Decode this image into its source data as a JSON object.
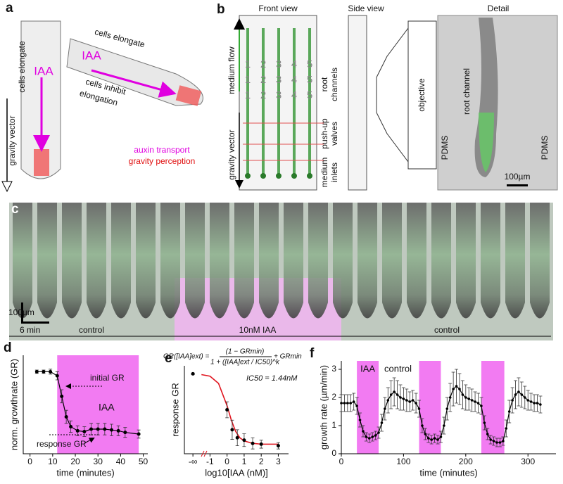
{
  "panel_a": {
    "label": "a",
    "cells_elongate_1": "cells elongate",
    "cells_elongate_2": "cells elongate",
    "iaa_1": "IAA",
    "iaa_2": "IAA",
    "cells_inhibit": "cells inhibit",
    "elongation": "elongation",
    "auxin_transport": "auxin transport",
    "gravity_perception": "gravity perception",
    "gravity_vector": "gravity vector"
  },
  "panel_b": {
    "label": "b",
    "front_view": "Front view",
    "side_view": "Side view",
    "detail": "Detail",
    "medium_flow": "medium flow",
    "gravity_vector": "gravity vector",
    "root": "root",
    "channels": "channels",
    "push_up": "push-up",
    "valves": "valves",
    "medium": "medium",
    "inlets": "inlets",
    "objective": "objective",
    "pdms_left": "PDMS",
    "pdms_right": "PDMS",
    "root_channel": "root channel",
    "scale": "100µm",
    "channel_numbers": [
      "1",
      "2",
      "3",
      "4",
      "5"
    ]
  },
  "panel_c": {
    "label": "c",
    "scale": "100µm",
    "time_scale": "6 min",
    "segments": [
      "control",
      "10nM IAA",
      "control"
    ]
  },
  "chart_data": [
    {
      "type": "line",
      "label": "d",
      "xlabel": "time (minutes)",
      "ylabel": "norm. growthrate (GR)",
      "color": "#000",
      "highlight_color": "#f27bf2",
      "highlights": [
        [
          12,
          48
        ]
      ],
      "x": [
        3,
        6,
        9,
        12,
        14,
        16,
        18,
        21,
        24,
        27,
        30,
        33,
        36,
        39,
        42,
        48
      ],
      "values": [
        1.0,
        1.0,
        1.0,
        0.95,
        0.7,
        0.45,
        0.33,
        0.28,
        0.27,
        0.3,
        0.3,
        0.3,
        0.29,
        0.28,
        0.26,
        0.24
      ],
      "errors": [
        0.02,
        0.02,
        0.03,
        0.05,
        0.08,
        0.08,
        0.07,
        0.06,
        0.06,
        0.07,
        0.07,
        0.07,
        0.07,
        0.06,
        0.06,
        0.05
      ],
      "xlim": [
        -3,
        52
      ],
      "ylim": [
        0,
        1.2
      ],
      "xticks": [
        0,
        10,
        20,
        30,
        40,
        50
      ],
      "annotations": [
        "initial GR",
        "IAA",
        "response GR"
      ]
    },
    {
      "type": "scatter",
      "label": "e",
      "xlabel": "log10[IAA (nM)]",
      "ylabel": "response GR",
      "color": "#000",
      "formula_lhs": "GR([IAA]ext) =",
      "formula_num": "(1 − GRmin)",
      "formula_den": "1 + ([IAA]ext / IC50)^k",
      "formula_rhs": "+ GRmin",
      "ic50": "IC50 = 1.44nM",
      "x": [
        -2,
        0,
        0.3,
        0.6,
        1,
        1.5,
        2,
        3
      ],
      "values": [
        1.0,
        0.55,
        0.3,
        0.2,
        0.17,
        0.13,
        0.12,
        0.1
      ],
      "errors": [
        0.01,
        0.1,
        0.12,
        0.1,
        0.08,
        0.07,
        0.05,
        0.04
      ],
      "fit": {
        "color": "#e0141e",
        "x": [
          -1.5,
          -1,
          -0.5,
          0,
          0.25,
          0.5,
          0.75,
          1,
          1.5,
          2,
          3
        ],
        "values": [
          0.99,
          0.97,
          0.88,
          0.6,
          0.42,
          0.28,
          0.2,
          0.16,
          0.13,
          0.12,
          0.12
        ]
      },
      "xlim": [
        -2.5,
        3.6
      ],
      "ylim": [
        0,
        1.1
      ],
      "xticks": [
        {
          "value": -2,
          "label": "-∞"
        },
        -1,
        0,
        1,
        2,
        3
      ]
    },
    {
      "type": "line",
      "label": "f",
      "xlabel": "time (minutes)",
      "ylabel": "growth rate (µm/min)",
      "color": "#000",
      "highlight_color": "#f27bf2",
      "highlights": [
        [
          25,
          60
        ],
        [
          125,
          160
        ],
        [
          225,
          262
        ]
      ],
      "x": [
        0,
        5,
        10,
        15,
        20,
        25,
        30,
        35,
        40,
        45,
        50,
        55,
        60,
        65,
        70,
        75,
        80,
        85,
        90,
        95,
        100,
        105,
        110,
        115,
        120,
        125,
        130,
        135,
        140,
        145,
        150,
        155,
        160,
        165,
        170,
        175,
        180,
        185,
        190,
        195,
        200,
        205,
        210,
        215,
        220,
        225,
        230,
        235,
        240,
        245,
        250,
        255,
        260,
        265,
        270,
        275,
        280,
        285,
        290,
        295,
        300,
        305,
        310,
        315,
        320
      ],
      "values": [
        1.8,
        1.8,
        1.8,
        1.8,
        1.85,
        1.7,
        1.2,
        0.8,
        0.6,
        0.55,
        0.6,
        0.65,
        0.75,
        1.1,
        1.6,
        1.9,
        2.1,
        2.2,
        2.1,
        2.0,
        1.95,
        1.9,
        1.85,
        1.9,
        1.8,
        1.6,
        1.0,
        0.7,
        0.55,
        0.5,
        0.55,
        0.5,
        0.6,
        1.0,
        1.6,
        2.0,
        2.3,
        2.4,
        2.3,
        2.1,
        2.0,
        1.95,
        1.9,
        1.85,
        1.8,
        1.7,
        1.1,
        0.7,
        0.5,
        0.45,
        0.4,
        0.4,
        0.45,
        0.9,
        1.5,
        1.9,
        2.1,
        2.2,
        2.1,
        2.0,
        1.9,
        1.85,
        1.8,
        1.8,
        1.75
      ],
      "errors": [
        0.3,
        0.3,
        0.3,
        0.3,
        0.3,
        0.3,
        0.25,
        0.2,
        0.15,
        0.15,
        0.15,
        0.15,
        0.2,
        0.3,
        0.4,
        0.45,
        0.5,
        0.5,
        0.5,
        0.45,
        0.4,
        0.4,
        0.35,
        0.35,
        0.35,
        0.3,
        0.25,
        0.2,
        0.15,
        0.15,
        0.15,
        0.15,
        0.2,
        0.3,
        0.4,
        0.5,
        0.6,
        0.6,
        0.55,
        0.5,
        0.45,
        0.4,
        0.4,
        0.35,
        0.35,
        0.3,
        0.25,
        0.2,
        0.15,
        0.15,
        0.15,
        0.15,
        0.15,
        0.3,
        0.4,
        0.45,
        0.5,
        0.5,
        0.45,
        0.4,
        0.35,
        0.3,
        0.3,
        0.3,
        0.3
      ],
      "xlim": [
        0,
        345
      ],
      "ylim": [
        0,
        3.3
      ],
      "xticks": [
        0,
        100,
        200,
        300
      ],
      "yticks": [
        0,
        1,
        2,
        3
      ],
      "annotations": [
        "IAA",
        "control"
      ]
    }
  ]
}
